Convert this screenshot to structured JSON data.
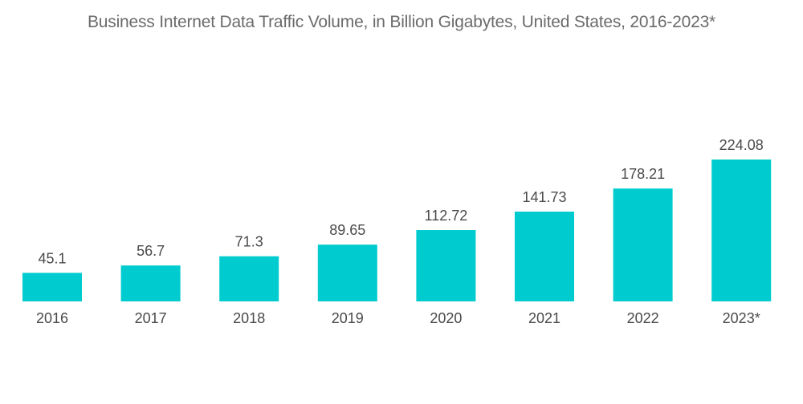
{
  "chart_data": {
    "type": "bar",
    "title": "Business Internet Data Traffic Volume, in Billion Gigabytes, United States, 2016-2023*",
    "xlabel": "",
    "ylabel": "",
    "categories": [
      "2016",
      "2017",
      "2018",
      "2019",
      "2020",
      "2021",
      "2022",
      "2023*"
    ],
    "values": [
      45.1,
      56.7,
      71.3,
      89.65,
      112.72,
      141.73,
      178.21,
      224.08
    ],
    "value_labels": [
      "45.1",
      "56.7",
      "71.3",
      "89.65",
      "112.72",
      "141.73",
      "178.21",
      "224.08"
    ],
    "ylim": [
      0,
      224.08
    ],
    "grid": false,
    "legend": "none",
    "bar_color": "#00cccf"
  }
}
